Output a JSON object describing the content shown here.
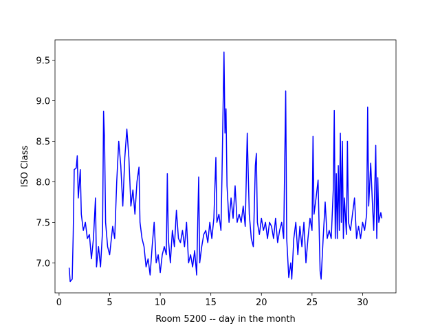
{
  "chart_data": {
    "type": "line",
    "xlabel": "Room 5200 -- day in the month",
    "ylabel": "ISO Class",
    "xlim": [
      -0.4,
      33.3
    ],
    "ylim": [
      6.63,
      9.75
    ],
    "xticks": [
      0,
      5,
      10,
      15,
      20,
      25,
      30
    ],
    "yticks": [
      {
        "value": 7,
        "label": "7.0"
      },
      {
        "value": 7.5,
        "label": "7.5"
      },
      {
        "value": 8,
        "label": "8.0"
      },
      {
        "value": 8.5,
        "label": "8.5"
      },
      {
        "value": 9,
        "label": "9.0"
      },
      {
        "value": 9.5,
        "label": "9.5"
      }
    ],
    "grid": false,
    "series": [
      {
        "color": "#0000ff",
        "x": [
          1.0,
          1.1,
          1.3,
          1.4,
          1.5,
          1.7,
          1.8,
          1.9,
          2.1,
          2.2,
          2.4,
          2.6,
          2.8,
          3.0,
          3.2,
          3.4,
          3.6,
          3.7,
          3.9,
          4.1,
          4.3,
          4.4,
          4.5,
          4.6,
          4.8,
          5.0,
          5.3,
          5.5,
          5.7,
          5.9,
          6.1,
          6.3,
          6.5,
          6.7,
          6.9,
          7.1,
          7.3,
          7.5,
          7.7,
          7.9,
          8.0,
          8.2,
          8.4,
          8.6,
          8.8,
          9.0,
          9.2,
          9.4,
          9.6,
          9.8,
          10.0,
          10.2,
          10.4,
          10.6,
          10.7,
          10.8,
          11.0,
          11.2,
          11.4,
          11.6,
          11.8,
          12.0,
          12.2,
          12.4,
          12.6,
          12.8,
          13.0,
          13.2,
          13.4,
          13.6,
          13.8,
          13.9,
          14.1,
          14.3,
          14.5,
          14.7,
          14.9,
          15.1,
          15.3,
          15.5,
          15.6,
          15.8,
          16.0,
          16.1,
          16.3,
          16.4,
          16.5,
          16.6,
          16.8,
          17.0,
          17.2,
          17.4,
          17.6,
          17.8,
          18.0,
          18.2,
          18.4,
          18.6,
          18.8,
          19.0,
          19.2,
          19.4,
          19.5,
          19.6,
          19.8,
          20.0,
          20.2,
          20.4,
          20.6,
          20.8,
          21.0,
          21.2,
          21.4,
          21.6,
          21.8,
          22.0,
          22.2,
          22.4,
          22.5,
          22.7,
          22.9,
          23.0,
          23.2,
          23.4,
          23.6,
          23.8,
          24.0,
          24.2,
          24.4,
          24.6,
          24.8,
          25.0,
          25.1,
          25.2,
          25.4,
          25.6,
          25.8,
          25.9,
          26.1,
          26.3,
          26.5,
          26.7,
          26.9,
          27.1,
          27.2,
          27.3,
          27.4,
          27.5,
          27.6,
          27.7,
          27.8,
          27.9,
          28.0,
          28.1,
          28.2,
          28.4,
          28.5,
          28.6,
          28.8,
          29.0,
          29.2,
          29.4,
          29.6,
          29.8,
          30.0,
          30.2,
          30.4,
          30.5,
          30.6,
          30.8,
          31.0,
          31.1,
          31.3,
          31.4,
          31.5,
          31.6,
          31.8,
          31.9
        ],
        "values": [
          6.94,
          6.77,
          6.8,
          7.35,
          8.15,
          8.17,
          8.32,
          7.8,
          8.15,
          7.6,
          7.4,
          7.5,
          7.3,
          7.35,
          7.05,
          7.3,
          7.8,
          6.95,
          7.2,
          6.95,
          7.4,
          8.87,
          8.5,
          7.5,
          7.2,
          7.1,
          7.45,
          7.3,
          8.0,
          8.5,
          8.2,
          7.7,
          8.3,
          8.65,
          8.3,
          7.7,
          7.9,
          7.6,
          8.0,
          8.18,
          7.5,
          7.3,
          7.2,
          6.95,
          7.05,
          6.85,
          7.2,
          7.5,
          7.0,
          7.1,
          6.88,
          7.1,
          7.2,
          7.1,
          8.1,
          7.3,
          7.0,
          7.4,
          7.2,
          7.65,
          7.3,
          7.25,
          7.4,
          7.2,
          7.5,
          7.0,
          7.1,
          6.95,
          7.15,
          6.85,
          8.06,
          7.0,
          7.2,
          7.35,
          7.4,
          7.25,
          7.5,
          7.3,
          7.55,
          8.3,
          7.5,
          7.6,
          7.4,
          8.05,
          9.6,
          8.6,
          8.9,
          7.95,
          7.5,
          7.8,
          7.55,
          7.95,
          7.5,
          7.6,
          7.5,
          7.7,
          7.45,
          8.6,
          7.6,
          7.3,
          7.2,
          8.2,
          8.35,
          7.5,
          7.35,
          7.55,
          7.4,
          7.5,
          7.3,
          7.5,
          7.45,
          7.3,
          7.55,
          7.25,
          7.4,
          7.5,
          7.3,
          9.12,
          7.3,
          6.82,
          7.0,
          6.8,
          7.3,
          7.5,
          7.1,
          7.45,
          7.2,
          7.5,
          7.0,
          7.3,
          7.55,
          7.4,
          8.56,
          7.6,
          7.8,
          8.02,
          6.9,
          6.8,
          7.3,
          7.75,
          7.3,
          7.4,
          7.3,
          7.9,
          8.88,
          7.3,
          8.1,
          7.3,
          8.2,
          7.4,
          8.6,
          7.5,
          8.5,
          7.3,
          7.8,
          7.35,
          8.5,
          7.5,
          7.4,
          7.6,
          7.8,
          7.3,
          7.45,
          7.3,
          7.5,
          7.4,
          7.6,
          8.92,
          7.7,
          8.23,
          7.65,
          7.4,
          8.45,
          7.3,
          8.05,
          7.5,
          7.62,
          7.55
        ]
      }
    ]
  }
}
